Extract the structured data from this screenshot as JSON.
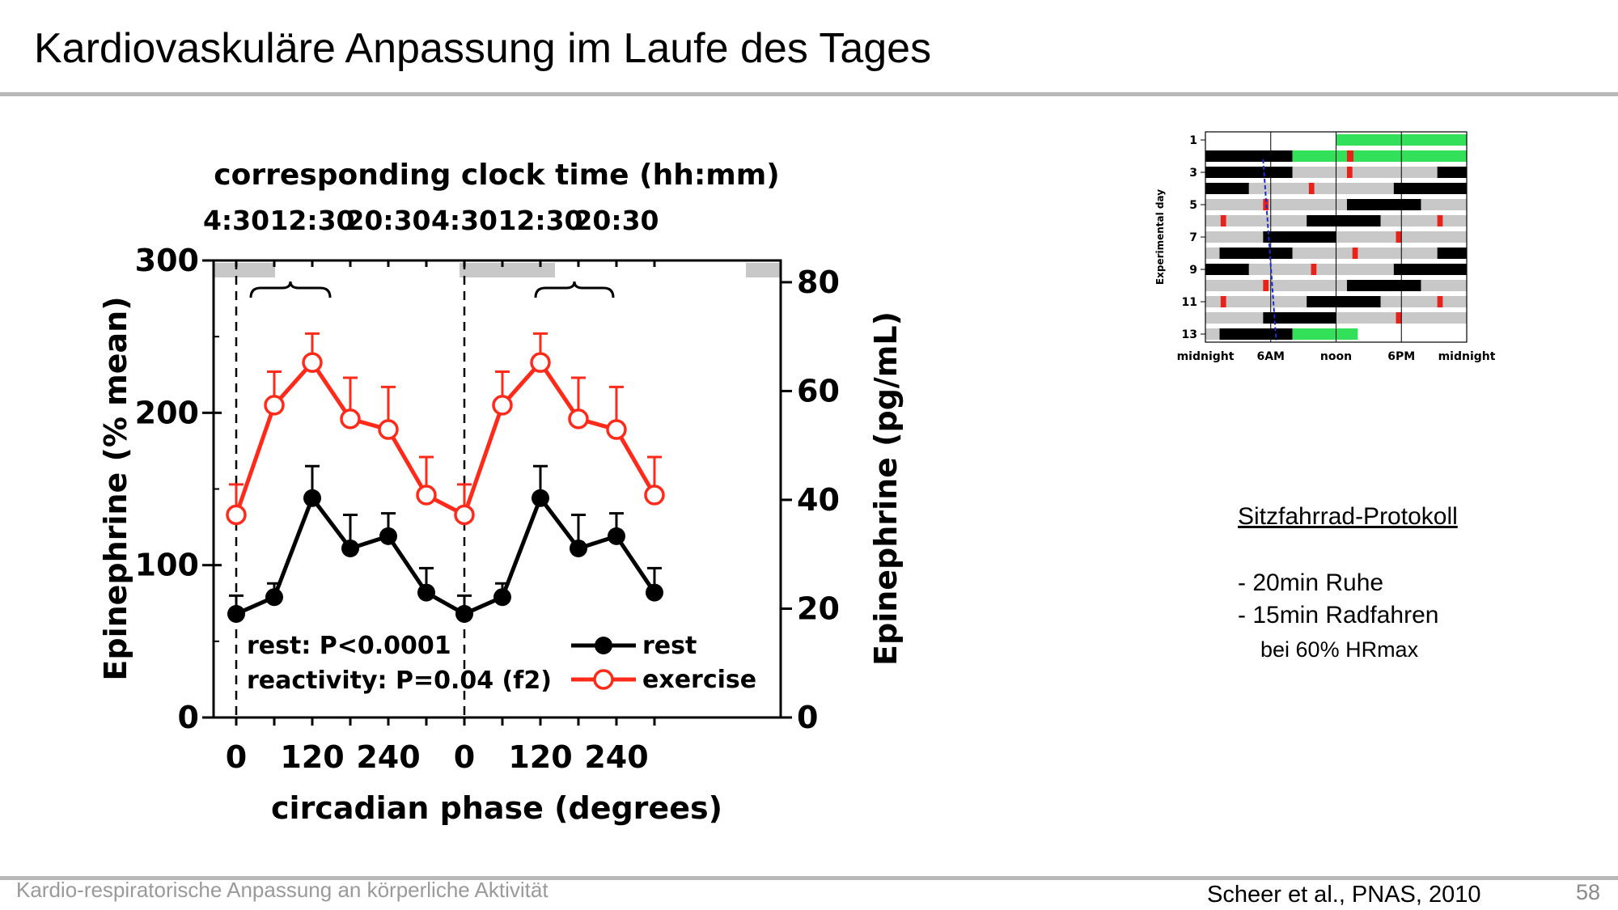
{
  "slide": {
    "title": "Kardiovaskuläre Anpassung im Laufe des Tages",
    "footer_left": "Kardio-respiratorische Anpassung an körperliche Aktivität",
    "citation": "Scheer et al., PNAS, 2010",
    "page_number": "58"
  },
  "protocol": {
    "heading": "Sitzfahrrad-Protokoll",
    "items": [
      "- 20min Ruhe",
      "- 15min Radfahren"
    ],
    "sub": "bei 60% HRmax"
  },
  "chart_data": [
    {
      "type": "line",
      "top_axis_title": "corresponding clock time (hh:mm)",
      "top_ticks": [
        "4:30",
        "12:30",
        "20:30",
        "4:30",
        "12:30",
        "20:30"
      ],
      "xlabel": "circadian phase (degrees)",
      "x_tick_labels": [
        "0",
        "120",
        "240",
        "0",
        "120",
        "240"
      ],
      "ylabel": "Epinephrine (% mean)",
      "ylim": [
        0,
        300
      ],
      "y_ticks": [
        "0",
        "100",
        "200",
        "300"
      ],
      "ylabel_right": "Epinephrine (pg/mL)",
      "ylim_right": [
        0,
        84
      ],
      "y_ticks_right": [
        "0",
        "20",
        "40",
        "60",
        "80"
      ],
      "x": [
        0,
        60,
        120,
        180,
        240,
        300,
        360,
        420,
        480,
        540,
        600,
        660
      ],
      "series": [
        {
          "name": "rest",
          "color": "#000000",
          "marker": "filled-circle",
          "values": [
            68,
            79,
            144,
            111,
            119,
            82,
            68,
            79,
            144,
            111,
            119,
            82
          ],
          "error_upper": [
            80,
            88,
            165,
            133,
            134,
            98,
            80,
            88,
            165,
            133,
            134,
            98
          ]
        },
        {
          "name": "exercise",
          "color": "#ff2a1a",
          "marker": "open-circle",
          "values": [
            133,
            205,
            233,
            196,
            189,
            146,
            133,
            205,
            233,
            196,
            189,
            146
          ],
          "error_upper": [
            153,
            227,
            252,
            223,
            217,
            171,
            153,
            227,
            252,
            223,
            217,
            171
          ]
        }
      ],
      "annotations": [
        "rest: P<0.0001",
        "reactivity: P=0.04 (f2)"
      ],
      "legend_position": "lower-right",
      "sleep_bars_note": "grey bars along top mark sleep episodes",
      "dashed_verticals_at_x": [
        0,
        360
      ]
    },
    {
      "type": "raster",
      "ylabel": "Experimental day",
      "y_tick_labels": [
        "1",
        "3",
        "5",
        "7",
        "9",
        "11",
        "13"
      ],
      "x_tick_labels": [
        "midnight",
        "6AM",
        "noon",
        "6PM",
        "midnight"
      ],
      "xlim_hours": [
        0,
        24
      ],
      "colors": {
        "scheduled_wake": "#c8c8c8",
        "sleep": "#000000",
        "test": "#e8221a",
        "baseline": "#33e05a",
        "phase_line": "#1a2bd0"
      }
    }
  ]
}
